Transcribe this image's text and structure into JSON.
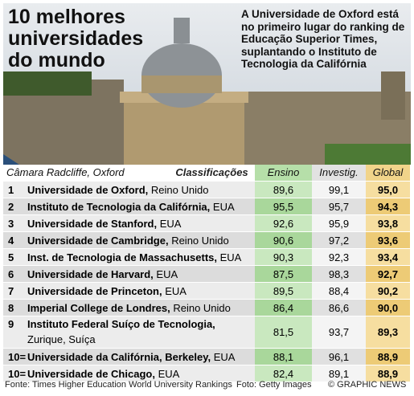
{
  "header": {
    "title": "10 melhores universidades do mundo",
    "subtitle": "A Universidade de Oxford está no primeiro lugar do ranking de Educação Superior Times, suplantando o Instituto de Tecnologia da Califórnia",
    "caption": "Câmara Radcliffe, Oxford"
  },
  "table": {
    "columns": [
      "Classificações",
      "Ensino",
      "Investig.",
      "Global"
    ],
    "rows": [
      [
        "1",
        "Universidade de Oxford,",
        "Reino Unido",
        "89,6",
        "99,1",
        "95,0"
      ],
      [
        "2",
        "Instituto de Tecnologia da Califórnia,",
        "EUA",
        "95,5",
        "95,7",
        "94,3"
      ],
      [
        "3",
        "Universidade de Stanford,",
        "EUA",
        "92,6",
        "95,9",
        "93,8"
      ],
      [
        "4",
        "Universidade de Cambridge,",
        "Reino Unido",
        "90,6",
        "97,2",
        "93,6"
      ],
      [
        "5",
        "Inst. de Tecnologia de Massachusetts,",
        "EUA",
        "90,3",
        "92,3",
        "93,4"
      ],
      [
        "6",
        "Universidade de Harvard,",
        "EUA",
        "87,5",
        "98,3",
        "92,7"
      ],
      [
        "7",
        "Universidade de Princeton,",
        "EUA",
        "89,5",
        "88,4",
        "90,2"
      ],
      [
        "8",
        "Imperial College de Londres,",
        "Reino Unido",
        "86,4",
        "86,6",
        "90,0"
      ],
      [
        "9",
        "Instituto Federal Suíço de Tecnologia,",
        "Zurique, Suíça",
        "81,5",
        "93,7",
        "89,3"
      ],
      [
        "10=",
        "Universidade da Califórnia, Berkeley,",
        "EUA",
        "88,1",
        "96,1",
        "88,9"
      ],
      [
        "10=",
        "Universidade de Chicago,",
        "EUA",
        "82,4",
        "89,1",
        "88,9"
      ]
    ]
  },
  "footer": {
    "source": "Fonte: Times Higher Education World University Rankings",
    "photo": "Foto: Getty Images",
    "credit": "© GRAPHIC NEWS"
  }
}
